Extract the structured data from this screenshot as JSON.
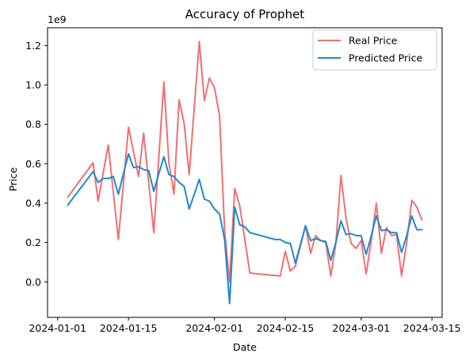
{
  "chart_data": {
    "type": "line",
    "title": "Accuracy of Prophet",
    "xlabel": "Date",
    "ylabel": "Price",
    "y_multiplier_label": "1e9",
    "x_range": [
      "2023-12-30",
      "2024-03-17"
    ],
    "y_range": [
      -0.18,
      1.29
    ],
    "x_ticks": [
      "2024-01-01",
      "2024-01-15",
      "2024-02-01",
      "2024-02-15",
      "2024-03-01",
      "2024-03-15"
    ],
    "y_ticks": [
      0.0,
      0.2,
      0.4,
      0.6,
      0.8,
      1.0,
      1.2
    ],
    "y_tick_labels": [
      "0.0",
      "0.2",
      "0.4",
      "0.6",
      "0.8",
      "1.0",
      "1.2"
    ],
    "legend_position": "top-right",
    "grid": false,
    "series": [
      {
        "name": "Real Price",
        "color": "#f07070",
        "points": [
          [
            "2024-01-03",
            0.43
          ],
          [
            "2024-01-08",
            0.605
          ],
          [
            "2024-01-09",
            0.41
          ],
          [
            "2024-01-11",
            0.695
          ],
          [
            "2024-01-13",
            0.215
          ],
          [
            "2024-01-15",
            0.785
          ],
          [
            "2024-01-17",
            0.535
          ],
          [
            "2024-01-18",
            0.755
          ],
          [
            "2024-01-20",
            0.25
          ],
          [
            "2024-01-22",
            1.015
          ],
          [
            "2024-01-23",
            0.605
          ],
          [
            "2024-01-24",
            0.445
          ],
          [
            "2024-01-25",
            0.925
          ],
          [
            "2024-01-26",
            0.805
          ],
          [
            "2024-01-27",
            0.545
          ],
          [
            "2024-01-29",
            1.22
          ],
          [
            "2024-01-30",
            0.92
          ],
          [
            "2024-01-31",
            1.035
          ],
          [
            "2024-02-01",
            0.985
          ],
          [
            "2024-02-02",
            0.845
          ],
          [
            "2024-02-03",
            0.26
          ],
          [
            "2024-02-04",
            0.0
          ],
          [
            "2024-02-05",
            0.475
          ],
          [
            "2024-02-06",
            0.385
          ],
          [
            "2024-02-08",
            0.045
          ],
          [
            "2024-02-14",
            0.03
          ],
          [
            "2024-02-15",
            0.155
          ],
          [
            "2024-02-16",
            0.055
          ],
          [
            "2024-02-17",
            0.08
          ],
          [
            "2024-02-19",
            0.285
          ],
          [
            "2024-02-20",
            0.145
          ],
          [
            "2024-02-21",
            0.235
          ],
          [
            "2024-02-22",
            0.21
          ],
          [
            "2024-02-23",
            0.2
          ],
          [
            "2024-02-24",
            0.03
          ],
          [
            "2024-02-25",
            0.195
          ],
          [
            "2024-02-26",
            0.54
          ],
          [
            "2024-02-27",
            0.325
          ],
          [
            "2024-02-28",
            0.195
          ],
          [
            "2024-02-29",
            0.17
          ],
          [
            "2024-03-01",
            0.21
          ],
          [
            "2024-03-02",
            0.04
          ],
          [
            "2024-03-03",
            0.21
          ],
          [
            "2024-03-04",
            0.4
          ],
          [
            "2024-03-05",
            0.145
          ],
          [
            "2024-03-06",
            0.275
          ],
          [
            "2024-03-07",
            0.235
          ],
          [
            "2024-03-08",
            0.24
          ],
          [
            "2024-03-09",
            0.03
          ],
          [
            "2024-03-10",
            0.2
          ],
          [
            "2024-03-11",
            0.415
          ],
          [
            "2024-03-12",
            0.38
          ],
          [
            "2024-03-13",
            0.315
          ]
        ]
      },
      {
        "name": "Predicted Price",
        "color": "#1f88cf",
        "points": [
          [
            "2024-01-03",
            0.39
          ],
          [
            "2024-01-08",
            0.56
          ],
          [
            "2024-01-09",
            0.505
          ],
          [
            "2024-01-10",
            0.525
          ],
          [
            "2024-01-11",
            0.525
          ],
          [
            "2024-01-12",
            0.535
          ],
          [
            "2024-01-13",
            0.445
          ],
          [
            "2024-01-14",
            0.55
          ],
          [
            "2024-01-15",
            0.65
          ],
          [
            "2024-01-16",
            0.58
          ],
          [
            "2024-01-17",
            0.585
          ],
          [
            "2024-01-18",
            0.57
          ],
          [
            "2024-01-19",
            0.565
          ],
          [
            "2024-01-20",
            0.46
          ],
          [
            "2024-01-21",
            0.55
          ],
          [
            "2024-01-22",
            0.635
          ],
          [
            "2024-01-23",
            0.545
          ],
          [
            "2024-01-24",
            0.535
          ],
          [
            "2024-01-25",
            0.505
          ],
          [
            "2024-01-26",
            0.485
          ],
          [
            "2024-01-27",
            0.37
          ],
          [
            "2024-01-28",
            0.445
          ],
          [
            "2024-01-29",
            0.52
          ],
          [
            "2024-01-30",
            0.42
          ],
          [
            "2024-01-31",
            0.41
          ],
          [
            "2024-02-01",
            0.37
          ],
          [
            "2024-02-02",
            0.345
          ],
          [
            "2024-02-03",
            0.215
          ],
          [
            "2024-02-04",
            -0.11
          ],
          [
            "2024-02-05",
            0.38
          ],
          [
            "2024-02-06",
            0.29
          ],
          [
            "2024-02-07",
            0.28
          ],
          [
            "2024-02-08",
            0.25
          ],
          [
            "2024-02-13",
            0.215
          ],
          [
            "2024-02-14",
            0.215
          ],
          [
            "2024-02-15",
            0.2
          ],
          [
            "2024-02-16",
            0.195
          ],
          [
            "2024-02-17",
            0.095
          ],
          [
            "2024-02-18",
            0.19
          ],
          [
            "2024-02-19",
            0.285
          ],
          [
            "2024-02-20",
            0.21
          ],
          [
            "2024-02-21",
            0.22
          ],
          [
            "2024-02-22",
            0.21
          ],
          [
            "2024-02-23",
            0.205
          ],
          [
            "2024-02-24",
            0.11
          ],
          [
            "2024-02-25",
            0.2
          ],
          [
            "2024-02-26",
            0.31
          ],
          [
            "2024-02-27",
            0.24
          ],
          [
            "2024-02-28",
            0.245
          ],
          [
            "2024-02-29",
            0.235
          ],
          [
            "2024-03-01",
            0.235
          ],
          [
            "2024-03-02",
            0.14
          ],
          [
            "2024-03-03",
            0.235
          ],
          [
            "2024-03-04",
            0.335
          ],
          [
            "2024-03-05",
            0.26
          ],
          [
            "2024-03-06",
            0.265
          ],
          [
            "2024-03-07",
            0.25
          ],
          [
            "2024-03-08",
            0.25
          ],
          [
            "2024-03-09",
            0.15
          ],
          [
            "2024-03-10",
            0.235
          ],
          [
            "2024-03-11",
            0.335
          ],
          [
            "2024-03-12",
            0.265
          ],
          [
            "2024-03-13",
            0.265
          ]
        ]
      }
    ]
  }
}
